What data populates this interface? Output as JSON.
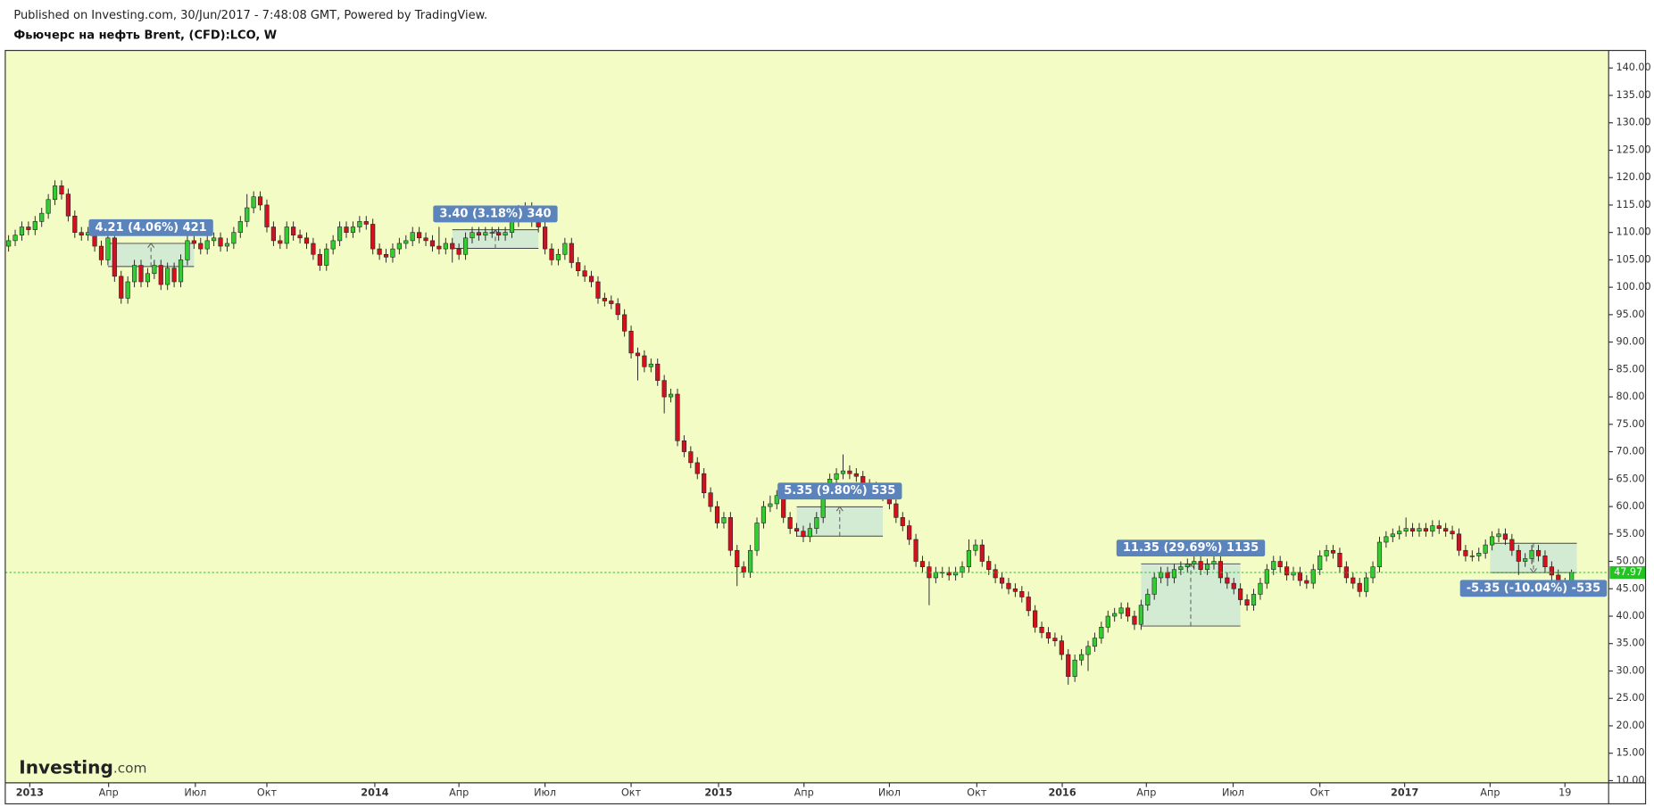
{
  "chart_data": {
    "type": "candlestick",
    "caption": "Published on Investing.com, 30/Jun/2017 - 7:48:08 GMT, Powered by TradingView.",
    "title": "Фьючерс на нефть Brent, (CFD):LCO, W",
    "logo_name": "Investing",
    "logo_suffix": ".com",
    "background": "#f4fcc6",
    "up_color": "#33cc33",
    "down_color": "#d2101e",
    "last_color": "#22c422",
    "grid": false,
    "open": [
      107.5,
      108.5,
      109.5,
      111,
      110.5,
      112,
      113.5,
      116,
      118.5,
      117,
      113,
      110,
      109.5,
      110,
      107.5,
      105,
      109,
      102,
      98,
      101,
      104,
      101,
      102.5,
      104,
      100.5,
      103.5,
      101,
      105,
      108.5,
      108,
      107,
      108.5,
      109,
      107.5,
      108,
      110,
      112,
      114.5,
      116.5,
      115,
      111,
      108.5,
      108,
      111,
      109.5,
      109,
      108,
      106,
      104,
      107,
      108.5,
      111,
      110,
      111,
      112,
      111.5,
      107,
      106,
      105.5,
      107,
      108,
      108.5,
      110,
      109,
      108.5,
      107.5,
      107,
      108,
      107,
      106,
      109,
      110,
      109.5,
      110,
      110,
      109.5,
      110,
      112,
      114,
      114.5,
      112,
      111,
      107,
      105,
      106,
      108,
      104.5,
      103,
      102,
      101,
      98,
      97.5,
      97,
      95,
      92,
      88,
      87.5,
      85.5,
      86,
      83,
      80,
      80.5,
      72,
      70,
      68,
      66,
      62.5,
      60,
      57,
      58,
      52,
      49,
      48,
      52,
      57,
      60,
      60.5,
      62,
      58,
      56,
      55.5,
      54.5,
      56,
      58,
      63,
      65,
      66,
      66.5,
      66,
      65.5,
      64,
      63.5,
      63,
      62,
      60.5,
      58,
      56.5,
      54,
      50,
      49,
      47,
      48,
      48,
      47.5,
      48,
      49,
      52,
      53,
      50,
      48.5,
      47,
      46,
      45,
      44.5,
      43.5,
      41,
      38,
      37,
      36,
      35.5,
      33,
      29,
      32,
      33,
      34.5,
      36,
      38,
      40,
      40.5,
      41.5,
      40,
      38.5,
      42,
      44,
      47,
      48,
      47,
      48.5,
      49,
      49.5,
      50,
      48.5,
      49.5,
      50,
      47,
      46,
      45,
      43,
      42,
      44,
      46,
      48.5,
      50,
      49,
      47.5,
      48,
      46.5,
      46,
      48.5,
      51,
      52,
      51.5,
      49,
      47,
      46,
      44.5,
      47,
      49,
      53.5,
      54.5,
      55,
      55.5,
      56,
      55.5,
      56,
      55.5,
      56.5,
      56,
      55.5,
      55,
      52,
      51,
      51,
      51.5,
      53,
      54.5,
      55,
      54,
      52,
      50,
      50.5,
      52,
      51,
      49,
      47.5,
      46,
      45.5
    ],
    "high": [
      109.5,
      110.5,
      112,
      112,
      113,
      114.5,
      117,
      119.5,
      119.5,
      118,
      114,
      111,
      111,
      111,
      108.5,
      110,
      110,
      103,
      102,
      105,
      105,
      103.5,
      105,
      105,
      104.5,
      104.5,
      106,
      109.5,
      109.5,
      109,
      109.5,
      110,
      110,
      109,
      111,
      113,
      117,
      117.5,
      117.5,
      116,
      112,
      109.5,
      112,
      112,
      110.5,
      110,
      109,
      107,
      108,
      109.5,
      112,
      112,
      112,
      113,
      113,
      112.5,
      108,
      107,
      108,
      109,
      109.5,
      111,
      111,
      110,
      109.5,
      111,
      109,
      109,
      108,
      110,
      111,
      111,
      111,
      111,
      111,
      111,
      113,
      115,
      115.5,
      115.5,
      113,
      112,
      108,
      107,
      109,
      109,
      105.5,
      104,
      103,
      102,
      99,
      98.5,
      98,
      96,
      93,
      89,
      88.5,
      87,
      87,
      84,
      81.5,
      81.5,
      73,
      71,
      69,
      67,
      63.5,
      61,
      59,
      59,
      53,
      50,
      53,
      58,
      61,
      62,
      63,
      63,
      59,
      57,
      56.5,
      57,
      59,
      64,
      66,
      67,
      69.5,
      67.5,
      67,
      66.5,
      65,
      64.5,
      64,
      63,
      61.5,
      59,
      57.5,
      55,
      51,
      50,
      49,
      49,
      49,
      49,
      50,
      54,
      54,
      54,
      51,
      49.5,
      48,
      47,
      46,
      45.5,
      44.5,
      42,
      39,
      38,
      37,
      36.5,
      34,
      33,
      34,
      35.5,
      37,
      39,
      41,
      41.5,
      42.5,
      42.5,
      41,
      43,
      45,
      48,
      49,
      49,
      49.5,
      50,
      50.5,
      51,
      51,
      50.5,
      51,
      51,
      48,
      47,
      46,
      44,
      45,
      47,
      49.5,
      51,
      51,
      50,
      49,
      49,
      47.5,
      49.5,
      52,
      53,
      53,
      52.5,
      50,
      48,
      47,
      48,
      50,
      54.5,
      55.5,
      56,
      56.5,
      58,
      57,
      57,
      57,
      57.5,
      57.5,
      57,
      56.5,
      56,
      53,
      52,
      52.5,
      54,
      55.5,
      56,
      56,
      55,
      53,
      51.5,
      53,
      53,
      52,
      50,
      48.5,
      47,
      48.5
    ],
    "low": [
      106.5,
      107.5,
      108.5,
      109.5,
      109.5,
      111,
      112.5,
      115,
      116,
      112,
      109,
      108.5,
      108.5,
      106.5,
      104,
      104,
      101,
      97,
      97,
      100,
      100,
      100,
      101.5,
      99.5,
      99.5,
      100,
      100,
      104,
      107,
      106,
      106,
      107.5,
      106.5,
      106.5,
      107,
      109,
      111,
      113.5,
      114,
      110,
      107.5,
      107,
      107,
      108.5,
      108,
      107,
      105,
      103,
      103,
      106,
      107.5,
      109,
      109,
      110,
      110.5,
      106,
      105,
      104.5,
      104.5,
      106,
      107,
      107.5,
      108,
      107.5,
      106.5,
      106,
      106,
      104.5,
      105,
      105,
      108,
      108.5,
      108.5,
      109,
      108.5,
      108.5,
      109,
      111,
      113,
      111,
      110,
      106,
      104,
      104,
      105,
      103.5,
      102,
      101,
      100,
      97,
      96.5,
      96,
      94,
      91,
      87,
      83,
      84.5,
      84.5,
      82,
      77,
      79,
      71,
      69,
      67,
      65,
      61.5,
      59,
      56,
      56,
      51,
      45.5,
      47,
      47,
      51,
      56,
      59,
      59.5,
      57,
      55,
      54.5,
      53.5,
      53.5,
      55,
      57,
      62,
      64,
      65,
      65,
      64.5,
      63,
      62.5,
      62,
      61,
      59.5,
      57,
      55.5,
      53,
      49,
      48,
      42,
      46,
      47,
      46.5,
      46.5,
      47,
      48,
      51,
      49,
      47.5,
      46,
      45,
      44,
      43.5,
      42.5,
      40,
      37,
      36,
      35,
      34.5,
      32,
      27.5,
      28,
      31,
      30,
      33.5,
      35,
      37,
      39,
      39.5,
      39,
      37.5,
      37.5,
      41,
      43,
      46,
      45.5,
      46,
      47.5,
      48,
      48.5,
      47.5,
      47.5,
      48.5,
      46,
      45,
      44,
      42,
      41,
      41,
      43,
      45,
      47.5,
      48,
      46.5,
      46.5,
      45.5,
      45,
      45,
      47.5,
      50,
      50.5,
      48,
      46,
      45,
      43.5,
      43.5,
      46,
      48,
      52.5,
      53.5,
      54,
      54.5,
      54.5,
      54.5,
      54.5,
      54.5,
      55,
      54.5,
      54,
      51,
      50,
      50,
      50,
      50.5,
      52,
      53.5,
      53,
      51,
      47.5,
      49,
      49.5,
      50,
      48,
      46.5,
      45,
      44.5,
      44.5
    ],
    "close": [
      108.5,
      109.5,
      111,
      110.5,
      112,
      113.5,
      116,
      118.5,
      117,
      113,
      110,
      109.5,
      110,
      107.5,
      105,
      109,
      102,
      98,
      101,
      104,
      101,
      102.5,
      104,
      100.5,
      103.5,
      101,
      105,
      108.5,
      108,
      107,
      108.5,
      109,
      107.5,
      108,
      110,
      112,
      114.5,
      116.5,
      115,
      111,
      108.5,
      108,
      111,
      109.5,
      109,
      108,
      106,
      104,
      107,
      108.5,
      111,
      110,
      111,
      112,
      111.5,
      107,
      106,
      105.5,
      107,
      108,
      108.5,
      110,
      109,
      108.5,
      107.5,
      107,
      108,
      107,
      106,
      109,
      110,
      109.5,
      110,
      110,
      109.5,
      110,
      112,
      114,
      114.5,
      112,
      111,
      107,
      105,
      106,
      108,
      104.5,
      103,
      102,
      101,
      98,
      97.5,
      97,
      95,
      92,
      88,
      87.5,
      85.5,
      86,
      83,
      80,
      80.5,
      72,
      70,
      68,
      66,
      62.5,
      60,
      57,
      58,
      52,
      49,
      48,
      52,
      57,
      60,
      60.5,
      62,
      58,
      56,
      55.5,
      54.5,
      56,
      58,
      63,
      65,
      66,
      66.5,
      66,
      65.5,
      64,
      63.5,
      63,
      62,
      60.5,
      58,
      56.5,
      54,
      50,
      49,
      47,
      48,
      48,
      47.5,
      48,
      49,
      52,
      53,
      50,
      48.5,
      47,
      46,
      45,
      44.5,
      43.5,
      41,
      38,
      37,
      36,
      35.5,
      33,
      29,
      32,
      33,
      34.5,
      36,
      38,
      40,
      40.5,
      41.5,
      40,
      38.5,
      42,
      44,
      47,
      48,
      47,
      48.5,
      49,
      49.5,
      50,
      48.5,
      49.5,
      50,
      47,
      46,
      45,
      43,
      42,
      44,
      46,
      48.5,
      50,
      49,
      47.5,
      48,
      46.5,
      46,
      48.5,
      51,
      52,
      51.5,
      49,
      47,
      46,
      44.5,
      47,
      49,
      53.5,
      54.5,
      55,
      55.5,
      56,
      55.5,
      56,
      55.5,
      56.5,
      56,
      55.5,
      55,
      52,
      51,
      51,
      51.5,
      53,
      54.5,
      55,
      54,
      52,
      50,
      50.5,
      52,
      51,
      49,
      47.5,
      46,
      45.5,
      47.97
    ],
    "xlim": [
      -0.5,
      241.6
    ],
    "xticks": [
      {
        "value": 3.2,
        "label": "2013"
      },
      {
        "value": 15.1,
        "label": "Апр"
      },
      {
        "value": 28.2,
        "label": "Июл"
      },
      {
        "value": 39,
        "label": "Окт"
      },
      {
        "value": 55.3,
        "label": "2014"
      },
      {
        "value": 68,
        "label": "Апр"
      },
      {
        "value": 81,
        "label": "Июл"
      },
      {
        "value": 94,
        "label": "Окт"
      },
      {
        "value": 107.2,
        "label": "2015"
      },
      {
        "value": 120.1,
        "label": "Апр"
      },
      {
        "value": 133,
        "label": "Июл"
      },
      {
        "value": 146.2,
        "label": "Окт"
      },
      {
        "value": 159.1,
        "label": "2016"
      },
      {
        "value": 171.8,
        "label": "Апр"
      },
      {
        "value": 184.9,
        "label": "Июл"
      },
      {
        "value": 198,
        "label": "Окт"
      },
      {
        "value": 210.8,
        "label": "2017"
      },
      {
        "value": 223.7,
        "label": "Апр"
      },
      {
        "value": 235,
        "label": "19"
      }
    ],
    "ylim": [
      9.6,
      143.2
    ],
    "yticks": [
      {
        "value": 10,
        "label": "10.00"
      },
      {
        "value": 15,
        "label": "15.00"
      },
      {
        "value": 20,
        "label": "20.00"
      },
      {
        "value": 25,
        "label": "25.00"
      },
      {
        "value": 30,
        "label": "30.00"
      },
      {
        "value": 35,
        "label": "35.00"
      },
      {
        "value": 40,
        "label": "40.00"
      },
      {
        "value": 45,
        "label": "45.00"
      },
      {
        "value": 50,
        "label": "50.00"
      },
      {
        "value": 55,
        "label": "55.00"
      },
      {
        "value": 60,
        "label": "60.00"
      },
      {
        "value": 65,
        "label": "65.00"
      },
      {
        "value": 70,
        "label": "70.00"
      },
      {
        "value": 75,
        "label": "75.00"
      },
      {
        "value": 80,
        "label": "80.00"
      },
      {
        "value": 85,
        "label": "85.00"
      },
      {
        "value": 90,
        "label": "90.00"
      },
      {
        "value": 95,
        "label": "95.00"
      },
      {
        "value": 100,
        "label": "100.00"
      },
      {
        "value": 105,
        "label": "105.00"
      },
      {
        "value": 110,
        "label": "110.00"
      },
      {
        "value": 115,
        "label": "115.00"
      },
      {
        "value": 120,
        "label": "120.00"
      },
      {
        "value": 125,
        "label": "125.00"
      },
      {
        "value": 130,
        "label": "130.00"
      },
      {
        "value": 135,
        "label": "135.00"
      },
      {
        "value": 140,
        "label": "140.00"
      }
    ],
    "annotations": [
      {
        "label": "4.21 (4.06%) 421",
        "start": 15,
        "end": 28,
        "from": 103.79,
        "to": 108.0
      },
      {
        "label": "3.40 (3.18%) 340",
        "start": 67,
        "end": 80,
        "from": 107.1,
        "to": 110.5
      },
      {
        "label": "5.35 (9.80%) 535",
        "start": 119,
        "end": 132,
        "from": 54.6,
        "to": 59.95
      },
      {
        "label": "11.35 (29.69%) 1135",
        "start": 171,
        "end": 186,
        "from": 38.2,
        "to": 49.55
      },
      {
        "label": "-5.35 (-10.04%) -535",
        "start": 223.7,
        "end": 236.8,
        "from": 53.3,
        "to": 47.95
      }
    ]
  }
}
